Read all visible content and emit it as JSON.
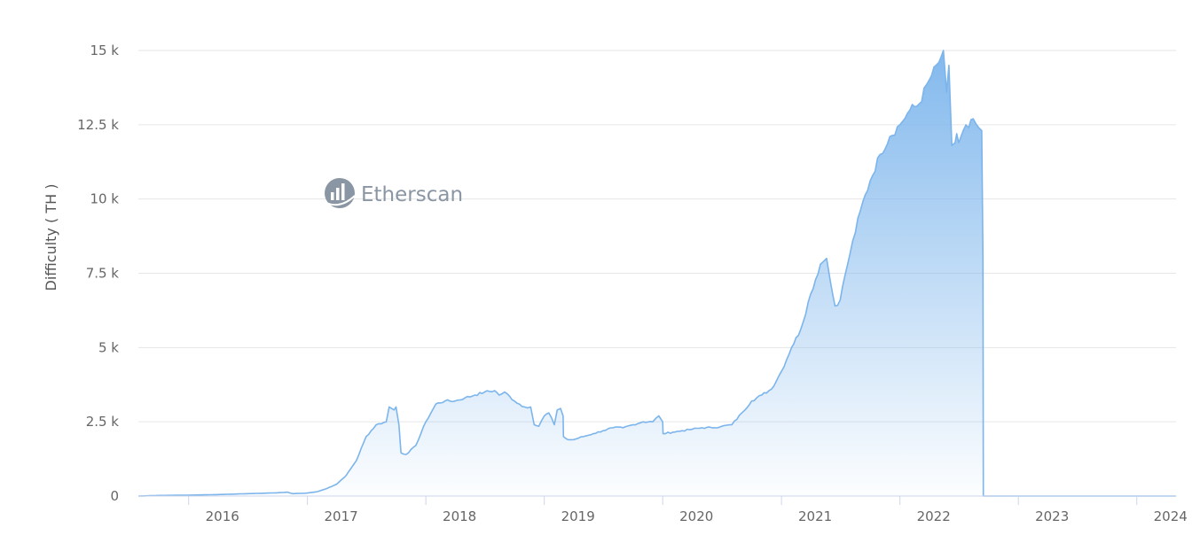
{
  "watermark": {
    "text": "Etherscan",
    "icon": "etherscan-logo-icon"
  },
  "colors": {
    "line": "#7cb5ec",
    "fill_top": "#7cb5ec",
    "grid": "#e6e6e6",
    "axis": "#ccd6eb",
    "label": "#666666"
  },
  "chart_data": {
    "type": "area",
    "title": "",
    "xlabel": "",
    "ylabel": "Difficulty ( TH )",
    "y_ticks": [
      {
        "value": 0,
        "label": "0"
      },
      {
        "value": 2500,
        "label": "2.5 k"
      },
      {
        "value": 5000,
        "label": "5 k"
      },
      {
        "value": 7500,
        "label": "7.5 k"
      },
      {
        "value": 10000,
        "label": "10 k"
      },
      {
        "value": 12500,
        "label": "12.5 k"
      },
      {
        "value": 15000,
        "label": "15 k"
      }
    ],
    "x_ticks": [
      "2016",
      "2017",
      "2018",
      "2019",
      "2020",
      "2021",
      "2022",
      "2023",
      "2024"
    ],
    "xlim": [
      "2015-07-30",
      "2024-05-01"
    ],
    "ylim": [
      0,
      15000
    ],
    "grid": true,
    "legend": "none",
    "series": [
      {
        "x": [
          "2015-07-30",
          "2015-10-01",
          "2016-01-01",
          "2016-04-01",
          "2016-07-01",
          "2016-10-01",
          "2016-11-01",
          "2016-11-15",
          "2017-01-01",
          "2017-02-01",
          "2017-03-01",
          "2017-04-01",
          "2017-05-01",
          "2017-06-01",
          "2017-07-01",
          "2017-08-01",
          "2017-09-01",
          "2017-09-10",
          "2017-09-25",
          "2017-10-01",
          "2017-10-10",
          "2017-10-16",
          "2017-10-17",
          "2017-11-01",
          "2017-12-01",
          "2018-01-01",
          "2018-02-01",
          "2018-03-01",
          "2018-04-01",
          "2018-05-01",
          "2018-06-01",
          "2018-07-01",
          "2018-08-01",
          "2018-08-15",
          "2018-09-01",
          "2018-10-01",
          "2018-11-01",
          "2018-11-20",
          "2018-12-01",
          "2018-12-15",
          "2019-01-01",
          "2019-01-15",
          "2019-02-01",
          "2019-02-10",
          "2019-02-20",
          "2019-02-28",
          "2019-03-01",
          "2019-03-15",
          "2019-04-01",
          "2019-05-01",
          "2019-06-01",
          "2019-07-01",
          "2019-08-01",
          "2019-09-01",
          "2019-10-01",
          "2019-11-01",
          "2019-12-01",
          "2019-12-20",
          "2020-01-01",
          "2020-01-02",
          "2020-02-01",
          "2020-03-01",
          "2020-04-01",
          "2020-05-01",
          "2020-06-01",
          "2020-07-01",
          "2020-08-01",
          "2020-09-01",
          "2020-10-01",
          "2020-11-01",
          "2020-12-01",
          "2021-01-01",
          "2021-02-01",
          "2021-03-01",
          "2021-04-01",
          "2021-05-01",
          "2021-05-20",
          "2021-06-01",
          "2021-06-15",
          "2021-07-01",
          "2021-07-15",
          "2021-08-01",
          "2021-09-01",
          "2021-10-01",
          "2021-11-01",
          "2021-12-01",
          "2022-01-01",
          "2022-02-01",
          "2022-03-01",
          "2022-04-01",
          "2022-05-01",
          "2022-05-15",
          "2022-05-25",
          "2022-06-01",
          "2022-06-10",
          "2022-06-20",
          "2022-06-25",
          "2022-07-01",
          "2022-07-05",
          "2022-07-15",
          "2022-08-01",
          "2022-08-15",
          "2022-09-01",
          "2022-09-10",
          "2022-09-14",
          "2022-09-15",
          "2022-09-16",
          "2023-01-01",
          "2023-06-01",
          "2024-01-01",
          "2024-05-01"
        ],
        "y": [
          0,
          20,
          30,
          50,
          80,
          110,
          130,
          80,
          100,
          150,
          250,
          400,
          700,
          1200,
          2000,
          2400,
          2500,
          3000,
          2900,
          3000,
          2400,
          1500,
          1450,
          1400,
          1700,
          2500,
          3100,
          3200,
          3200,
          3300,
          3400,
          3500,
          3550,
          3400,
          3500,
          3200,
          3000,
          3000,
          2400,
          2350,
          2700,
          2800,
          2400,
          2900,
          2950,
          2700,
          2000,
          1900,
          1900,
          2000,
          2100,
          2200,
          2300,
          2300,
          2400,
          2500,
          2500,
          2700,
          2500,
          2100,
          2150,
          2200,
          2250,
          2300,
          2300,
          2350,
          2400,
          2800,
          3200,
          3400,
          3600,
          4200,
          5000,
          5600,
          6800,
          7800,
          8000,
          7200,
          6400,
          6600,
          7400,
          8200,
          9600,
          10600,
          11500,
          12100,
          12500,
          13000,
          13200,
          14000,
          14600,
          15000,
          13600,
          14500,
          11800,
          11900,
          12200,
          11900,
          12000,
          12300,
          12400,
          12700,
          12400,
          12300,
          8000,
          10,
          0,
          0,
          0,
          0,
          0
        ]
      }
    ]
  }
}
